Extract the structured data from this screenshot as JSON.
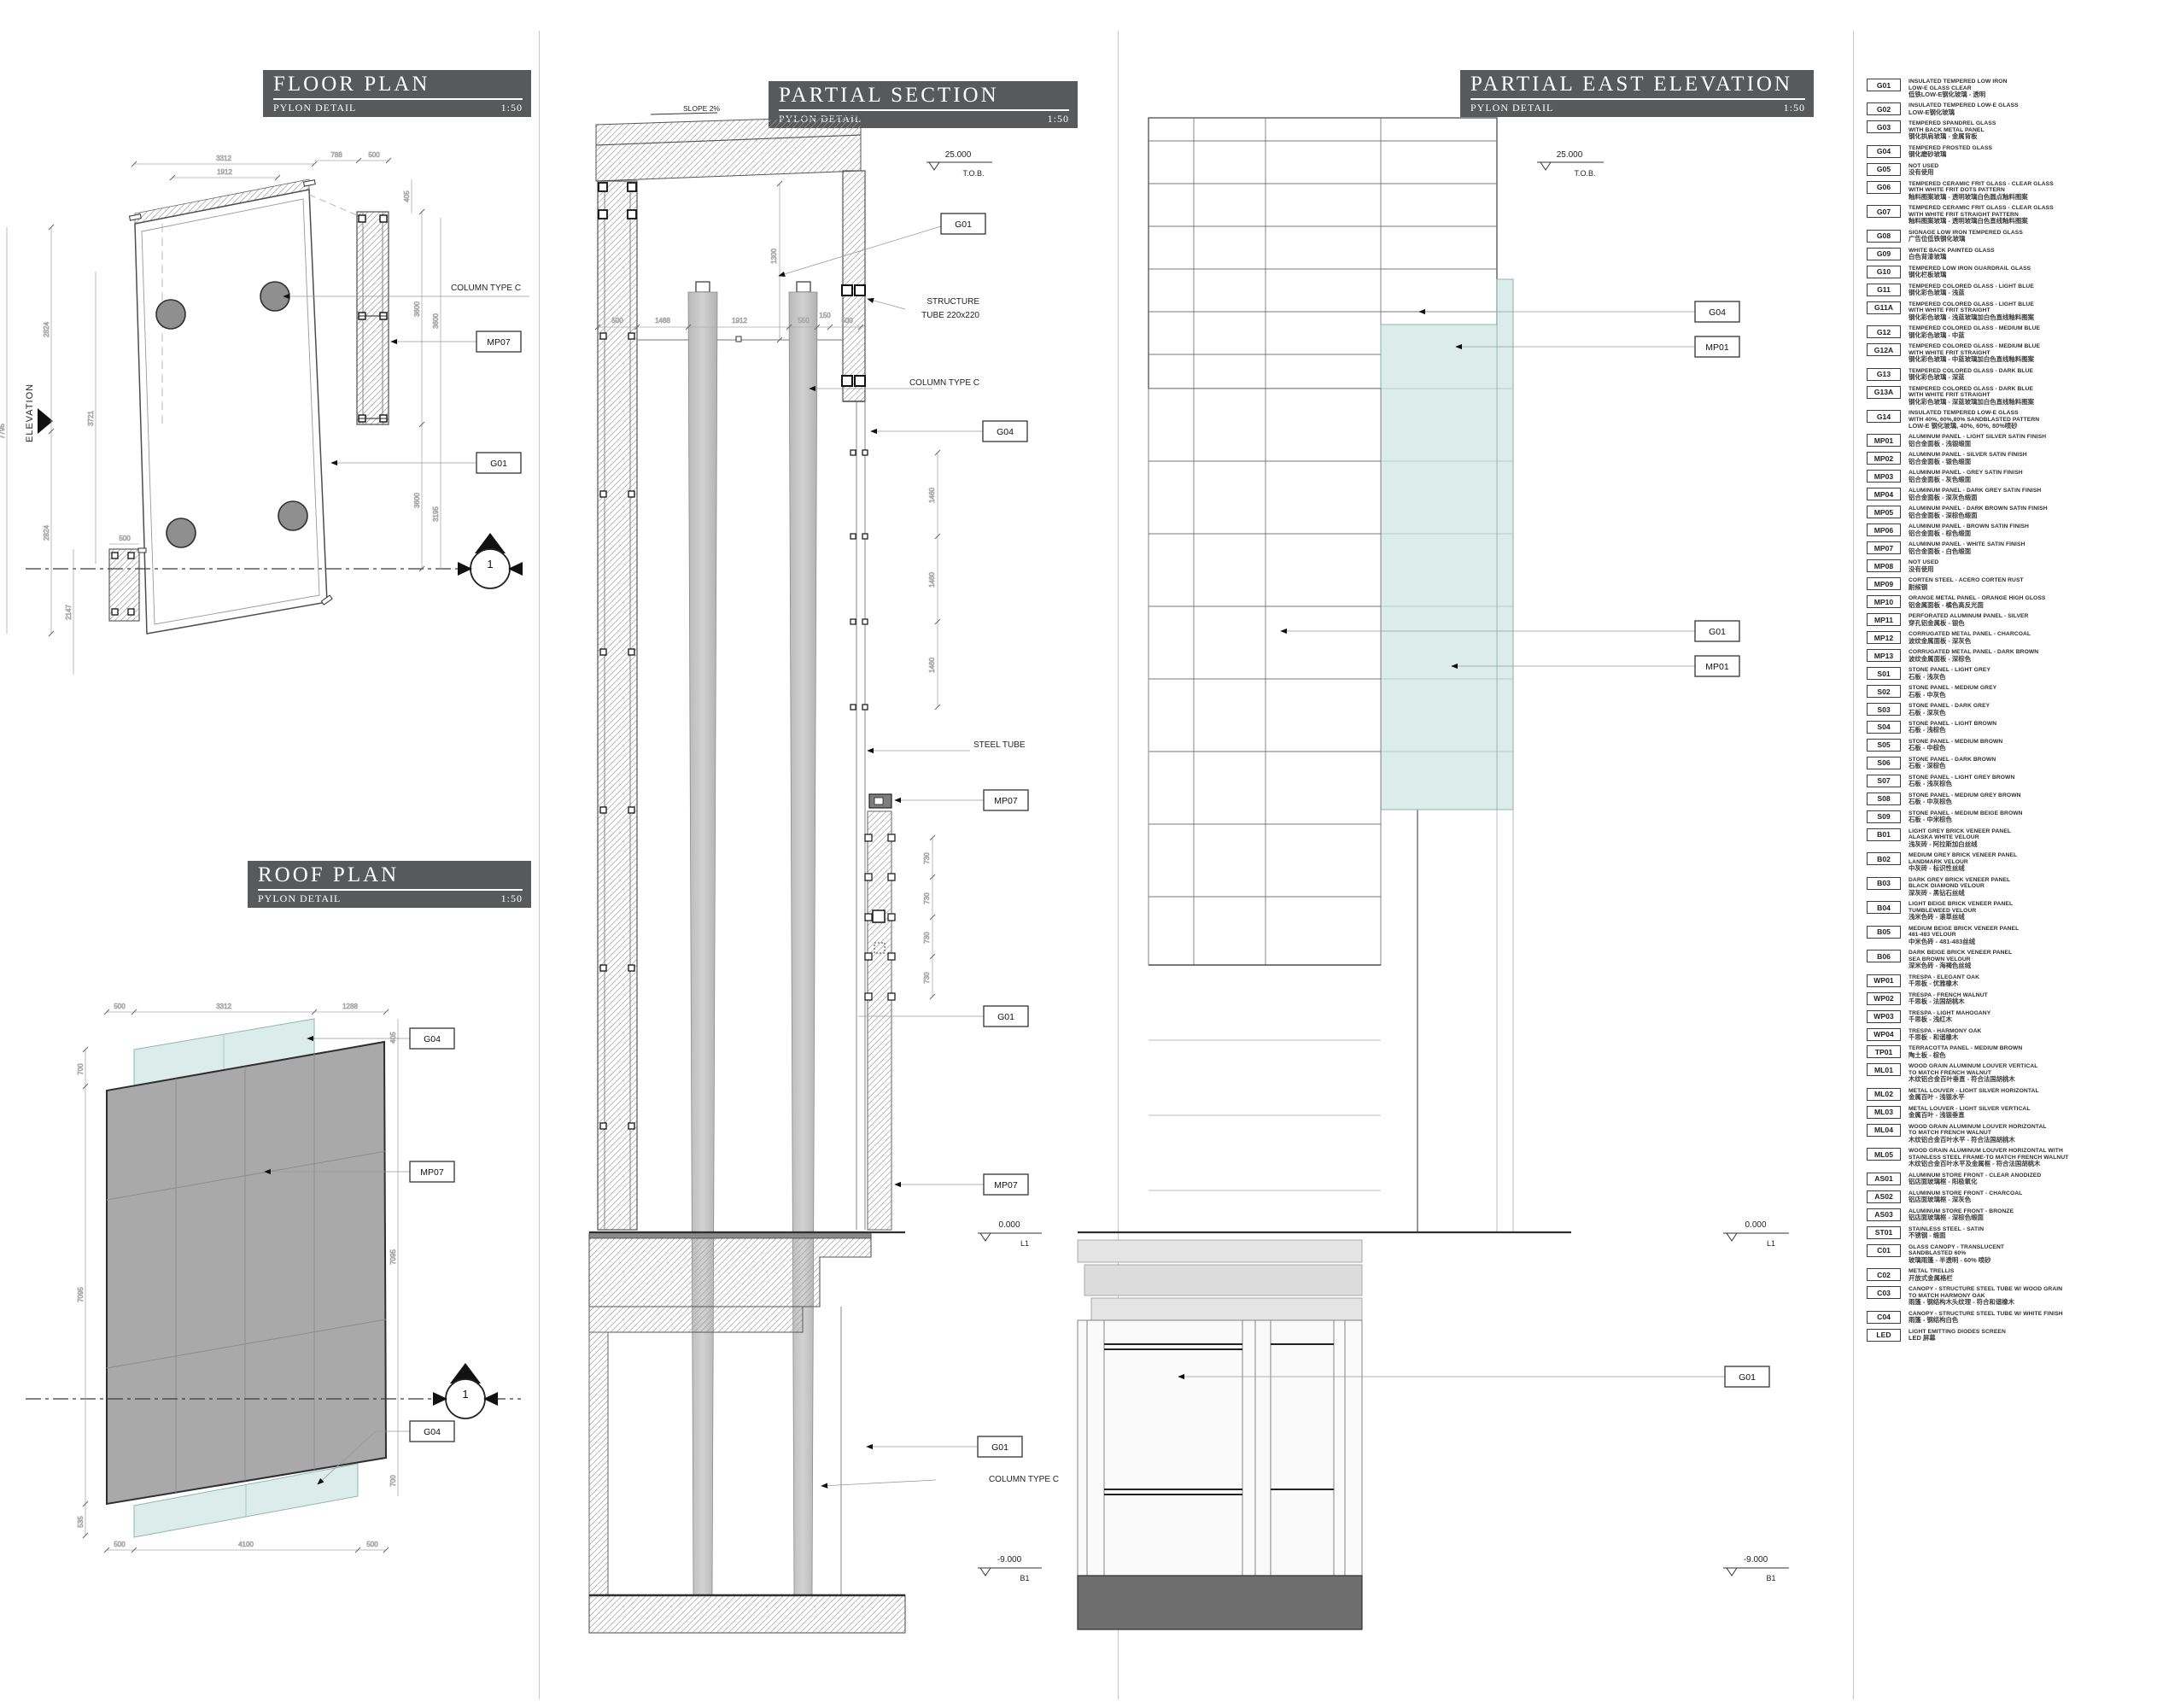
{
  "colors": {
    "titlebar": "#58595b",
    "glass": "#dcecea",
    "panel_grey": "#a9a9a9",
    "base_grey": "#6e6e6e"
  },
  "panels": {
    "floor": {
      "title": "FLOOR PLAN",
      "subtitle": "PYLON DETAIL",
      "scale": "1:50"
    },
    "roof": {
      "title": "ROOF PLAN",
      "subtitle": "PYLON DETAIL",
      "scale": "1:50"
    },
    "section": {
      "title": "PARTIAL SECTION",
      "subtitle": "PYLON DETAIL",
      "scale": "1:50"
    },
    "elevation": {
      "title": "PARTIAL EAST ELEVATION",
      "subtitle": "PYLON DETAIL",
      "scale": "1:50"
    }
  },
  "floor_plan": {
    "dims": {
      "t1": "3312",
      "t2": "1912",
      "t3": "788",
      "t4": "500",
      "r405": "405",
      "l2824a": "2824",
      "l3721": "3721",
      "l7795": "7795",
      "l2824b": "2824",
      "l500": "500",
      "l2147": "2147",
      "r3600a": "3600",
      "r3600b": "3600",
      "r3600c": "3600",
      "r3195": "3195"
    },
    "labels": {
      "column_type_c": "COLUMN TYPE C",
      "elevation": "ELEVATION",
      "section_no": "1",
      "tag_mp07": "MP07",
      "tag_g01": "G01"
    }
  },
  "roof_plan": {
    "dims": {
      "t500": "500",
      "t3312": "3312",
      "t1288": "1288",
      "r405": "405",
      "l700": "700",
      "l7095": "7095",
      "l535": "535",
      "b500a": "500",
      "b4100": "4100",
      "b500b": "500",
      "r7095": "7095",
      "r700": "700"
    },
    "labels": {
      "tag_g04_top": "G04",
      "tag_mp07": "MP07",
      "tag_g04_bottom": "G04",
      "section_no": "1"
    }
  },
  "section": {
    "levels": {
      "tob_v": "25.000",
      "tob_n": "T.O.B.",
      "l1_v": "0.000",
      "l1_n": "L1",
      "b1_v": "-9.000",
      "b1_n": "B1"
    },
    "labels": {
      "slope": "SLOPE 2%",
      "tag_g01_top": "G01",
      "st1": "STRUCTURE",
      "st2": "TUBE 220x220",
      "col_top": "COLUMN TYPE C",
      "tag_g04": "G04",
      "steel_tube": "STEEL TUBE",
      "tag_mp07_a": "MP07",
      "tag_g01_mid": "G01",
      "tag_mp07_b": "MP07",
      "tag_g01_bot": "G01",
      "col_bot": "COLUMN TYPE C"
    },
    "dims": {
      "v1300": "1300",
      "h500a": "500",
      "h1488": "1488",
      "h1912": "1912",
      "h550": "550",
      "h150": "150",
      "h500b": "500",
      "v1460": "1460",
      "v730": "730"
    }
  },
  "elevation": {
    "levels": {
      "tob_v": "25.000",
      "tob_n": "T.O.B.",
      "l1_v": "0.000",
      "l1_n": "L1",
      "b1_v": "-9.000",
      "b1_n": "B1"
    },
    "labels": {
      "section_no": "1",
      "tag_g04": "G04",
      "tag_mp01_a": "MP01",
      "tag_g01_a": "G01",
      "tag_mp01_b": "MP01",
      "tag_g01_b": "G01"
    }
  },
  "legend": {
    "entries": [
      {
        "code": "G01",
        "en": [
          "INSULATED TEMPERED LOW IRON",
          "LOW-E GLASS CLEAR"
        ],
        "cn": "低铁LOW-E钢化玻璃 - 透明"
      },
      {
        "code": "G02",
        "en": [
          "INSULATED TEMPERED LOW-E GLASS"
        ],
        "cn": "LOW-E钢化玻璃"
      },
      {
        "code": "G03",
        "en": [
          "TEMPERED SPANDREL GLASS",
          "WITH BACK METAL PANEL"
        ],
        "cn": "钢化拱肩玻璃 - 金属背板"
      },
      {
        "code": "G04",
        "en": [
          "TEMPERED FROSTED GLASS"
        ],
        "cn": "钢化磨砂玻璃"
      },
      {
        "code": "G05",
        "en": [
          "NOT USED"
        ],
        "cn": "没有使用"
      },
      {
        "code": "G06",
        "en": [
          "TEMPERED CERAMIC FRIT GLASS - CLEAR GLASS",
          "WITH WHITE FRIT DOTS PATTERN"
        ],
        "cn": "釉料图案玻璃 - 透明玻璃白色圆点釉料图案"
      },
      {
        "code": "G07",
        "en": [
          "TEMPERED CERAMIC FRIT GLASS - CLEAR GLASS",
          "WITH WHITE FRIT STRAIGHT PATTERN"
        ],
        "cn": "釉料图案玻璃 - 透明玻璃白色直线釉料图案"
      },
      {
        "code": "G08",
        "en": [
          "SIGNAGE LOW IRON TEMPERED GLASS"
        ],
        "cn": "广告位低铁钢化玻璃"
      },
      {
        "code": "G09",
        "en": [
          "WHITE BACK PAINTED GLASS"
        ],
        "cn": "白色背漆玻璃"
      },
      {
        "code": "G10",
        "en": [
          "TEMPERED LOW IRON GUARDRAIL GLASS"
        ],
        "cn": "钢化栏板玻璃"
      },
      {
        "code": "G11",
        "en": [
          "TEMPERED COLORED GLASS - LIGHT BLUE"
        ],
        "cn": "钢化彩色玻璃 - 浅蓝"
      },
      {
        "code": "G11A",
        "en": [
          "TEMPERED COLORED GLASS - LIGHT BLUE",
          "WITH WHITE FRIT STRAIGHT"
        ],
        "cn": "钢化彩色玻璃 - 浅蓝玻璃加白色直线釉料图案"
      },
      {
        "code": "G12",
        "en": [
          "TEMPERED COLORED GLASS - MEDIUM BLUE"
        ],
        "cn": "钢化彩色玻璃 - 中蓝"
      },
      {
        "code": "G12A",
        "en": [
          "TEMPERED COLORED GLASS - MEDIUM BLUE",
          "WITH WHITE FRIT STRAIGHT"
        ],
        "cn": "钢化彩色玻璃 - 中蓝玻璃加白色直线釉料图案"
      },
      {
        "code": "G13",
        "en": [
          "TEMPERED COLORED GLASS - DARK BLUE"
        ],
        "cn": "钢化彩色玻璃 - 深蓝"
      },
      {
        "code": "G13A",
        "en": [
          "TEMPERED COLORED GLASS - DARK BLUE",
          "WITH WHITE FRIT STRAIGHT"
        ],
        "cn": "钢化彩色玻璃 - 深蓝玻璃加白色直线釉料图案"
      },
      {
        "code": "G14",
        "en": [
          "INSULATED TEMPERED LOW-E GLASS",
          "WITH 40%, 60%,80% SANDBLASTED PATTERN"
        ],
        "cn": "LOW-E 钢化玻璃, 40%, 60%, 80%喷砂"
      },
      {
        "code": "MP01",
        "en": [
          "ALUMINUM PANEL - LIGHT SILVER SATIN FINISH"
        ],
        "cn": "铝合金面板 - 浅银缎面"
      },
      {
        "code": "MP02",
        "en": [
          "ALUMINUM PANEL - SILVER SATIN FINISH"
        ],
        "cn": "铝合金面板 - 银色缎面"
      },
      {
        "code": "MP03",
        "en": [
          "ALUMINUM PANEL - GREY SATIN FINISH"
        ],
        "cn": "铝合金面板 - 灰色缎面"
      },
      {
        "code": "MP04",
        "en": [
          "ALUMINUM PANEL - DARK GREY SATIN FINISH"
        ],
        "cn": "铝合金面板 - 深灰色缎面"
      },
      {
        "code": "MP05",
        "en": [
          "ALUMINUM PANEL - DARK BROWN SATIN FINISH"
        ],
        "cn": "铝合金面板 - 深棕色缎面"
      },
      {
        "code": "MP06",
        "en": [
          "ALUMINUM PANEL - BROWN SATIN FINISH"
        ],
        "cn": "铝合金面板 - 棕色缎面"
      },
      {
        "code": "MP07",
        "en": [
          "ALUMINUM PANEL - WHITE SATIN FINISH"
        ],
        "cn": "铝合金面板 - 白色缎面"
      },
      {
        "code": "MP08",
        "en": [
          "NOT USED"
        ],
        "cn": "没有使用"
      },
      {
        "code": "MP09",
        "en": [
          "CORTEN STEEL - ACERO CORTEN RUST"
        ],
        "cn": "耐候钢"
      },
      {
        "code": "MP10",
        "en": [
          "ORANGE METAL PANEL - ORANGE HIGH GLOSS"
        ],
        "cn": "铝金属面板 - 橘色高反光面"
      },
      {
        "code": "MP11",
        "en": [
          "PERFORATED ALUMINUM PANEL - SILVER"
        ],
        "cn": "穿孔铝金属板 - 银色"
      },
      {
        "code": "MP12",
        "en": [
          "CORRUGATED METAL PANEL - CHARCOAL"
        ],
        "cn": "波纹金属面板 - 深灰色"
      },
      {
        "code": "MP13",
        "en": [
          "CORRUGATED METAL PANEL - DARK BROWN"
        ],
        "cn": "波纹金属面板 - 深棕色"
      },
      {
        "code": "S01",
        "en": [
          "STONE PANEL - LIGHT GREY"
        ],
        "cn": "石板 - 浅灰色"
      },
      {
        "code": "S02",
        "en": [
          "STONE PANEL - MEDIUM GREY"
        ],
        "cn": "石板 - 中灰色"
      },
      {
        "code": "S03",
        "en": [
          "STONE PANEL - DARK GREY"
        ],
        "cn": "石板 - 深灰色"
      },
      {
        "code": "S04",
        "en": [
          "STONE PANEL - LIGHT BROWN"
        ],
        "cn": "石板 - 浅棕色"
      },
      {
        "code": "S05",
        "en": [
          "STONE PANEL - MEDIUM BROWN"
        ],
        "cn": "石板 - 中棕色"
      },
      {
        "code": "S06",
        "en": [
          "STONE PANEL - DARK BROWN"
        ],
        "cn": "石板 - 深棕色"
      },
      {
        "code": "S07",
        "en": [
          "STONE PANEL - LIGHT GREY BROWN"
        ],
        "cn": "石板 - 浅灰棕色"
      },
      {
        "code": "S08",
        "en": [
          "STONE PANEL - MEDIUM GREY BROWN"
        ],
        "cn": "石板 - 中灰棕色"
      },
      {
        "code": "S09",
        "en": [
          "STONE PANEL - MEDIUM BEIGE BROWN"
        ],
        "cn": "石板 - 中米棕色"
      },
      {
        "code": "B01",
        "en": [
          "LIGHT GREY BRICK VENEER PANEL",
          "ALASKA WHITE VELOUR"
        ],
        "cn": "浅灰砖 - 阿拉斯加白丝绒"
      },
      {
        "code": "B02",
        "en": [
          "MEDIUM GREY BRICK VENEER PANEL",
          "LANDMARK VELOUR"
        ],
        "cn": "中灰砖 - 标识性丝绒"
      },
      {
        "code": "B03",
        "en": [
          "DARK GREY BRICK VENEER PANEL",
          "BLACK DIAMOND VELOUR"
        ],
        "cn": "深灰砖 - 黑钻石丝绒"
      },
      {
        "code": "B04",
        "en": [
          "LIGHT BEIGE BRICK VENEER PANEL",
          "TUMBLEWEED VELOUR"
        ],
        "cn": "浅米色砖 - 滚草丝绒"
      },
      {
        "code": "B05",
        "en": [
          "MEDIUM BEIGE BRICK VENEER PANEL",
          "481-483 VELOUR"
        ],
        "cn": "中米色砖 - 481-483丝绒"
      },
      {
        "code": "B06",
        "en": [
          "DARK BEIGE BRICK VENEER PANEL",
          "SEA BROWN VELOUR"
        ],
        "cn": "深米色砖 - 海褐色丝绒"
      },
      {
        "code": "WP01",
        "en": [
          "TRESPA - ELEGANT OAK"
        ],
        "cn": "千思板 - 优雅橡木"
      },
      {
        "code": "WP02",
        "en": [
          "TRESPA - FRENCH WALNUT"
        ],
        "cn": "千思板 - 法国胡桃木"
      },
      {
        "code": "WP03",
        "en": [
          "TRESPA - LIGHT MAHOGANY"
        ],
        "cn": "千思板 - 浅红木"
      },
      {
        "code": "WP04",
        "en": [
          "TRESPA - HARMONY OAK"
        ],
        "cn": "千思板 - 和谐橡木"
      },
      {
        "code": "TP01",
        "en": [
          "TERRACOTTA PANEL - MEDIUM BROWN"
        ],
        "cn": "陶土板 - 棕色"
      },
      {
        "code": "ML01",
        "en": [
          "WOOD GRAIN ALUMINUM LOUVER VERTICAL",
          "TO MATCH FRENCH WALNUT"
        ],
        "cn": "木纹铝合金百叶垂直 - 符合法国胡桃木"
      },
      {
        "code": "ML02",
        "en": [
          "METAL LOUVER - LIGHT SILVER HORIZONTAL"
        ],
        "cn": "金属百叶 - 浅银水平"
      },
      {
        "code": "ML03",
        "en": [
          "METAL LOUVER - LIGHT SILVER VERTICAL"
        ],
        "cn": "金属百叶 - 浅银垂直"
      },
      {
        "code": "ML04",
        "en": [
          "WOOD GRAIN ALUMINUM LOUVER HORIZONTAL",
          "TO MATCH FRENCH WALNUT"
        ],
        "cn": "木纹铝合金百叶水平 - 符合法国胡桃木"
      },
      {
        "code": "ML05",
        "en": [
          "WOOD GRAIN ALUMINUM LOUVER HORIZONTAL WITH",
          "STAINLESS STEEL FRAME-TO MATCH FRENCH WALNUT"
        ],
        "cn": "木纹铝合金百叶水平及金属框 - 符合法国胡桃木"
      },
      {
        "code": "AS01",
        "en": [
          "ALUMINUM STORE FRONT - CLEAR ANODIZED"
        ],
        "cn": "铝店面玻璃框 - 阳极氧化"
      },
      {
        "code": "AS02",
        "en": [
          "ALUMINUM STORE FRONT - CHARCOAL"
        ],
        "cn": "铝店面玻璃框 - 深灰色"
      },
      {
        "code": "AS03",
        "en": [
          "ALUMINUM STORE FRONT - BRONZE"
        ],
        "cn": "铝店面玻璃框 - 深棕色缎面"
      },
      {
        "code": "ST01",
        "en": [
          "STAINLESS STEEL - SATIN"
        ],
        "cn": "不锈钢 - 缎面"
      },
      {
        "code": "C01",
        "en": [
          "GLASS CANOPY - TRANSLUCENT",
          "SANDBLASTED 60%"
        ],
        "cn": "玻璃雨篷 - 半透明 - 60% 喷砂"
      },
      {
        "code": "C02",
        "en": [
          "METAL TRELLIS"
        ],
        "cn": "开放式金属格栏"
      },
      {
        "code": "C03",
        "en": [
          "CANOPY - STRUCTURE STEEL TUBE W/ WOOD GRAIN",
          "TO MATCH HARMONY OAK"
        ],
        "cn": "雨篷 - 钢结构木头纹理 - 符合和谐橡木"
      },
      {
        "code": "C04",
        "en": [
          "CANOPY - STRUCTURE STEEL TUBE W/ WHITE FINISH"
        ],
        "cn": "雨篷 - 钢结构白色"
      },
      {
        "code": "LED",
        "en": [
          "LIGHT EMITTING DIODES SCREEN"
        ],
        "cn": "LED 屏幕"
      }
    ]
  }
}
